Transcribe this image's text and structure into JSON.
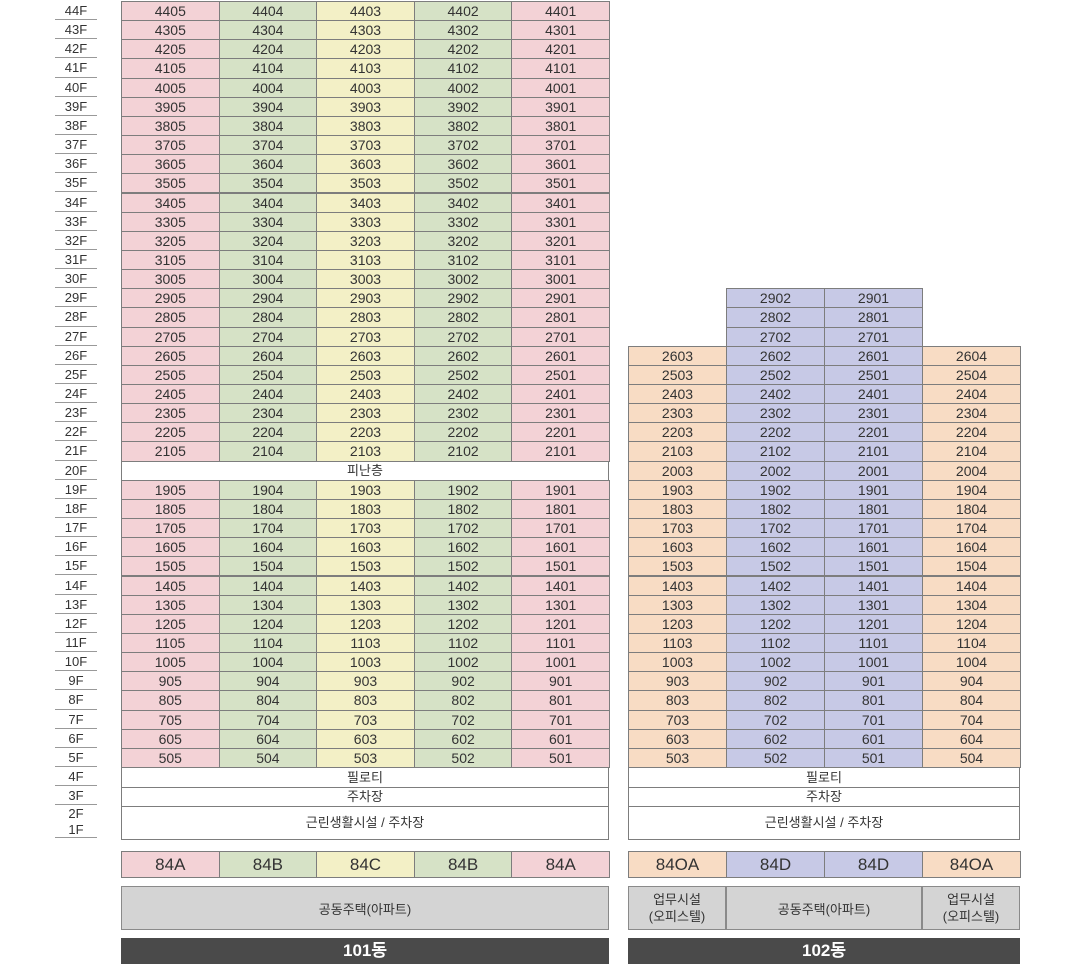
{
  "floors": [
    "44F",
    "43F",
    "42F",
    "41F",
    "40F",
    "39F",
    "38F",
    "37F",
    "36F",
    "35F",
    "34F",
    "33F",
    "32F",
    "31F",
    "30F",
    "29F",
    "28F",
    "27F",
    "26F",
    "25F",
    "24F",
    "23F",
    "22F",
    "21F",
    "20F",
    "19F",
    "18F",
    "17F",
    "16F",
    "15F",
    "14F",
    "13F",
    "12F",
    "11F",
    "10F",
    "9F",
    "8F",
    "7F",
    "6F",
    "5F",
    "4F",
    "3F",
    "2F",
    "1F"
  ],
  "b101": {
    "units": [
      [
        "4405",
        "4404",
        "4403",
        "4402",
        "4401"
      ],
      [
        "4305",
        "4304",
        "4303",
        "4302",
        "4301"
      ],
      [
        "4205",
        "4204",
        "4203",
        "4202",
        "4201"
      ],
      [
        "4105",
        "4104",
        "4103",
        "4102",
        "4101"
      ],
      [
        "4005",
        "4004",
        "4003",
        "4002",
        "4001"
      ],
      [
        "3905",
        "3904",
        "3903",
        "3902",
        "3901"
      ],
      [
        "3805",
        "3804",
        "3803",
        "3802",
        "3801"
      ],
      [
        "3705",
        "3704",
        "3703",
        "3702",
        "3701"
      ],
      [
        "3605",
        "3604",
        "3603",
        "3602",
        "3601"
      ],
      [
        "3505",
        "3504",
        "3503",
        "3502",
        "3501"
      ],
      [
        "3405",
        "3404",
        "3403",
        "3402",
        "3401"
      ],
      [
        "3305",
        "3304",
        "3303",
        "3302",
        "3301"
      ],
      [
        "3205",
        "3204",
        "3203",
        "3202",
        "3201"
      ],
      [
        "3105",
        "3104",
        "3103",
        "3102",
        "3101"
      ],
      [
        "3005",
        "3004",
        "3003",
        "3002",
        "3001"
      ],
      [
        "2905",
        "2904",
        "2903",
        "2902",
        "2901"
      ],
      [
        "2805",
        "2804",
        "2803",
        "2802",
        "2801"
      ],
      [
        "2705",
        "2704",
        "2703",
        "2702",
        "2701"
      ],
      [
        "2605",
        "2604",
        "2603",
        "2602",
        "2601"
      ],
      [
        "2505",
        "2504",
        "2503",
        "2502",
        "2501"
      ],
      [
        "2405",
        "2404",
        "2403",
        "2402",
        "2401"
      ],
      [
        "2305",
        "2304",
        "2303",
        "2302",
        "2301"
      ],
      [
        "2205",
        "2204",
        "2203",
        "2202",
        "2201"
      ],
      [
        "2105",
        "2104",
        "2103",
        "2102",
        "2101"
      ],
      null,
      [
        "1905",
        "1904",
        "1903",
        "1902",
        "1901"
      ],
      [
        "1805",
        "1804",
        "1803",
        "1802",
        "1801"
      ],
      [
        "1705",
        "1704",
        "1703",
        "1702",
        "1701"
      ],
      [
        "1605",
        "1604",
        "1603",
        "1602",
        "1601"
      ],
      [
        "1505",
        "1504",
        "1503",
        "1502",
        "1501"
      ],
      [
        "1405",
        "1404",
        "1403",
        "1402",
        "1401"
      ],
      [
        "1305",
        "1304",
        "1303",
        "1302",
        "1301"
      ],
      [
        "1205",
        "1204",
        "1203",
        "1202",
        "1201"
      ],
      [
        "1105",
        "1104",
        "1103",
        "1102",
        "1101"
      ],
      [
        "1005",
        "1004",
        "1003",
        "1002",
        "1001"
      ],
      [
        "905",
        "904",
        "903",
        "902",
        "901"
      ],
      [
        "805",
        "804",
        "803",
        "802",
        "801"
      ],
      [
        "705",
        "704",
        "703",
        "702",
        "701"
      ],
      [
        "605",
        "604",
        "603",
        "602",
        "601"
      ],
      [
        "505",
        "504",
        "503",
        "502",
        "501"
      ]
    ],
    "column_colors": [
      "pink",
      "green",
      "yellow",
      "green",
      "pink"
    ],
    "refuge_label": "피난층",
    "piloti_label": "필로티",
    "parking_label": "주차장",
    "retail_label": "근린생활시설 / 주차장",
    "types": [
      "84A",
      "84B",
      "84C",
      "84B",
      "84A"
    ],
    "use_label": "공동주택(아파트)",
    "name": "101동"
  },
  "b102": {
    "tower_units": [
      [
        "2902",
        "2901"
      ],
      [
        "2802",
        "2801"
      ],
      [
        "2702",
        "2701"
      ]
    ],
    "units": [
      [
        "2603",
        "2602",
        "2601",
        "2604"
      ],
      [
        "2503",
        "2502",
        "2501",
        "2504"
      ],
      [
        "2403",
        "2402",
        "2401",
        "2404"
      ],
      [
        "2303",
        "2302",
        "2301",
        "2304"
      ],
      [
        "2203",
        "2202",
        "2201",
        "2204"
      ],
      [
        "2103",
        "2102",
        "2101",
        "2104"
      ],
      [
        "2003",
        "2002",
        "2001",
        "2004"
      ],
      [
        "1903",
        "1902",
        "1901",
        "1904"
      ],
      [
        "1803",
        "1802",
        "1801",
        "1804"
      ],
      [
        "1703",
        "1702",
        "1701",
        "1704"
      ],
      [
        "1603",
        "1602",
        "1601",
        "1604"
      ],
      [
        "1503",
        "1502",
        "1501",
        "1504"
      ],
      [
        "1403",
        "1402",
        "1401",
        "1404"
      ],
      [
        "1303",
        "1302",
        "1301",
        "1304"
      ],
      [
        "1203",
        "1202",
        "1201",
        "1204"
      ],
      [
        "1103",
        "1102",
        "1101",
        "1104"
      ],
      [
        "1003",
        "1002",
        "1001",
        "1004"
      ],
      [
        "903",
        "902",
        "901",
        "904"
      ],
      [
        "803",
        "802",
        "801",
        "804"
      ],
      [
        "703",
        "702",
        "701",
        "704"
      ],
      [
        "603",
        "602",
        "601",
        "604"
      ],
      [
        "503",
        "502",
        "501",
        "504"
      ]
    ],
    "column_colors": [
      "orange",
      "purple",
      "purple",
      "orange"
    ],
    "piloti_label": "필로티",
    "parking_label": "주차장",
    "retail_label": "근린생활시설 / 주차장",
    "types": [
      "84OA",
      "84D",
      "84D",
      "84OA"
    ],
    "use_left": "업무시설\n(오피스텔)",
    "use_center": "공동주택(아파트)",
    "use_right": "업무시설\n(오피스텔)",
    "name": "102동"
  },
  "colors": {
    "pink": "#f3d2d6",
    "green": "#d6e2c6",
    "yellow": "#f3f0c6",
    "orange": "#f8dcc4",
    "purple": "#c7c9e6",
    "building_label_bg": "#4a4a4a",
    "use_box_bg": "#d4d4d4"
  }
}
